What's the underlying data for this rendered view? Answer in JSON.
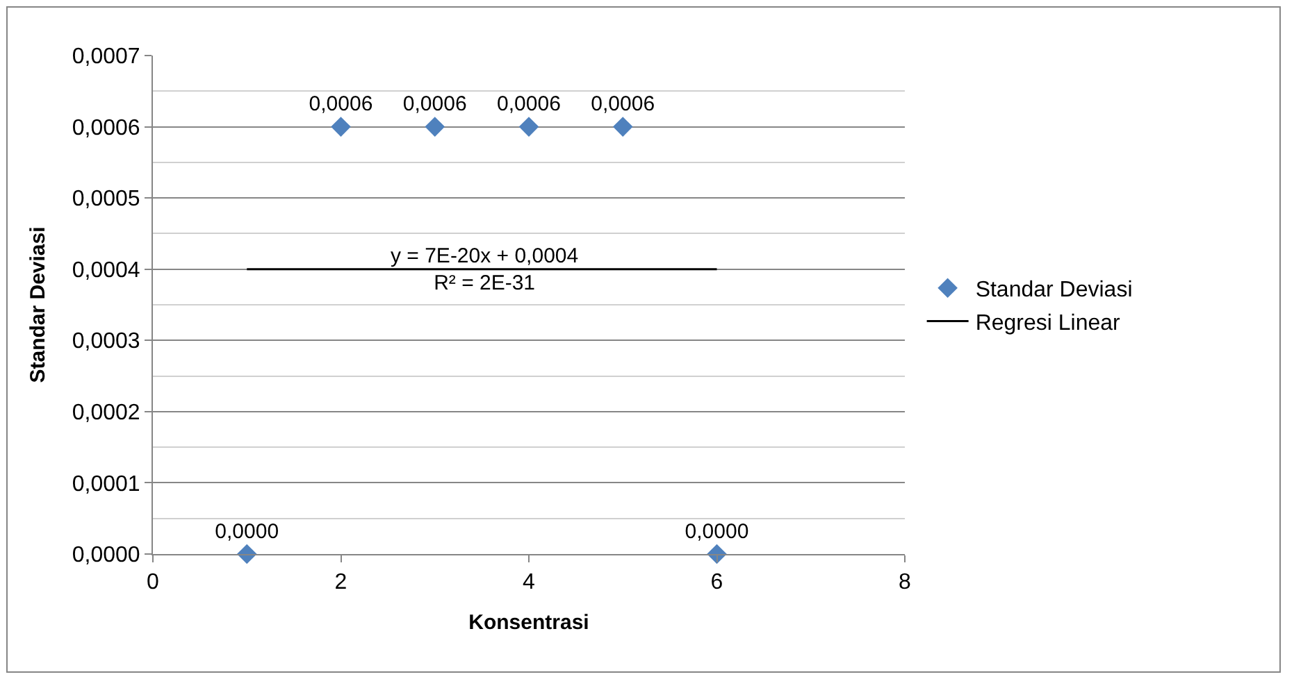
{
  "chart_data": {
    "type": "scatter",
    "xlabel": "Konsentrasi",
    "ylabel": "Standar Deviasi",
    "x": [
      1,
      2,
      3,
      4,
      5,
      6
    ],
    "series": [
      {
        "name": "Standar Deviasi",
        "color": "#4f81bd",
        "marker": "diamond",
        "values": [
          0,
          0.0006,
          0.0006,
          0.0006,
          0.0006,
          0
        ],
        "value_labels": [
          "0,0000",
          "0,0006",
          "0,0006",
          "0,0006",
          "0,0006",
          "0,0000"
        ]
      },
      {
        "name": "Regresi Linear",
        "type": "line",
        "color": "#000000",
        "x": [
          1,
          6
        ],
        "values": [
          0.0004,
          0.0004
        ],
        "marker": "none",
        "line_style": "solid"
      }
    ],
    "annotations": [
      "y = 7E-20x + 0,0004\nR² = 2E-31"
    ],
    "xlim": [
      0,
      8
    ],
    "xticks": [
      0,
      2,
      4,
      6,
      8
    ],
    "ylim": [
      0,
      0.0007
    ],
    "yticks": [
      {
        "value": 0,
        "label": "0,0000"
      },
      {
        "value": 0.0001,
        "label": "0,0001"
      },
      {
        "value": 0.0002,
        "label": "0,0002"
      },
      {
        "value": 0.0003,
        "label": "0,0003"
      },
      {
        "value": 0.0004,
        "label": "0,0004"
      },
      {
        "value": 0.0005,
        "label": "0,0005"
      },
      {
        "value": 0.0006,
        "label": "0,0006"
      },
      {
        "value": 0.0007,
        "label": "0,0007"
      }
    ],
    "grid": "y",
    "legend": "right"
  }
}
